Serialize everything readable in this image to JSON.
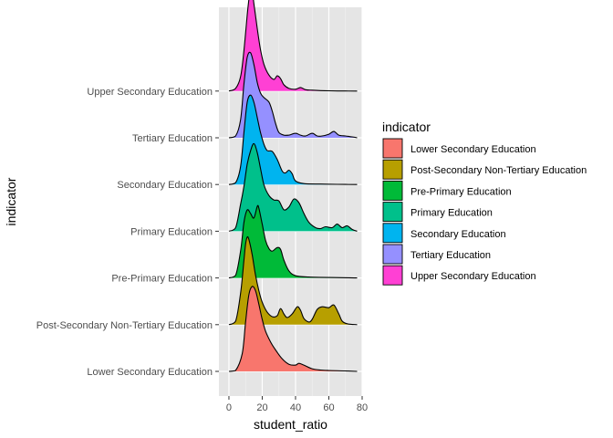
{
  "chart_data": {
    "type": "area",
    "subtype": "ridgeline-density",
    "xlabel": "student_ratio",
    "ylabel": "indicator",
    "xlim": [
      -6,
      80
    ],
    "xticks": [
      0,
      20,
      40,
      60,
      80
    ],
    "grid": true,
    "background": "#E5E5E5",
    "legend": {
      "title": "indicator",
      "position": "right",
      "entries": [
        "Lower Secondary Education",
        "Post-Secondary Non-Tertiary Education",
        "Pre-Primary Education",
        "Primary Education",
        "Secondary Education",
        "Tertiary Education",
        "Upper Secondary Education"
      ]
    },
    "categories": [
      "Lower Secondary Education",
      "Post-Secondary Non-Tertiary Education",
      "Pre-Primary Education",
      "Primary Education",
      "Secondary Education",
      "Tertiary Education",
      "Upper Secondary Education"
    ],
    "series": [
      {
        "name": "Lower Secondary Education",
        "color": "#F8766D",
        "x": [
          0,
          4,
          8,
          10,
          12,
          14,
          16,
          18,
          20,
          22,
          25,
          28,
          32,
          36,
          40,
          42,
          45,
          50,
          55,
          60,
          70,
          77
        ],
        "density": [
          0.0,
          0.01,
          0.2,
          0.55,
          0.86,
          0.95,
          0.9,
          0.75,
          0.58,
          0.45,
          0.33,
          0.24,
          0.14,
          0.08,
          0.07,
          0.09,
          0.07,
          0.03,
          0.015,
          0.01,
          0.005,
          0.0
        ]
      },
      {
        "name": "Post-Secondary Non-Tertiary Education",
        "color": "#B79F00",
        "x": [
          0,
          4,
          7,
          9,
          10,
          11,
          12,
          14,
          16,
          18,
          20,
          23,
          26,
          29,
          31,
          33,
          35,
          38,
          41,
          43,
          45,
          48,
          50,
          53,
          56,
          60,
          63,
          66,
          68,
          71,
          77
        ],
        "density": [
          0.0,
          0.04,
          0.35,
          0.72,
          0.9,
          0.98,
          0.95,
          0.78,
          0.55,
          0.38,
          0.25,
          0.14,
          0.09,
          0.1,
          0.18,
          0.12,
          0.08,
          0.12,
          0.2,
          0.16,
          0.07,
          0.03,
          0.06,
          0.17,
          0.2,
          0.19,
          0.22,
          0.12,
          0.04,
          0.01,
          0.0
        ]
      },
      {
        "name": "Pre-Primary Education",
        "color": "#00BA38",
        "x": [
          0,
          4,
          7,
          9,
          11,
          13,
          15,
          17,
          18,
          20,
          22,
          24,
          26,
          29,
          31,
          33,
          36,
          40,
          48,
          60,
          72,
          77
        ],
        "density": [
          0.0,
          0.03,
          0.3,
          0.62,
          0.76,
          0.72,
          0.67,
          0.8,
          0.78,
          0.6,
          0.42,
          0.33,
          0.3,
          0.34,
          0.32,
          0.2,
          0.08,
          0.025,
          0.01,
          0.005,
          0.002,
          0.0
        ]
      },
      {
        "name": "Primary Education",
        "color": "#00C08B",
        "x": [
          0,
          4,
          7,
          9,
          11,
          13,
          15,
          17,
          19,
          21,
          24,
          27,
          30,
          33,
          36,
          39,
          42,
          45,
          48,
          52,
          55,
          58,
          62,
          65,
          68,
          71,
          74,
          77
        ],
        "density": [
          0.0,
          0.04,
          0.3,
          0.5,
          0.75,
          0.9,
          0.98,
          0.88,
          0.7,
          0.52,
          0.4,
          0.35,
          0.34,
          0.24,
          0.27,
          0.36,
          0.32,
          0.2,
          0.1,
          0.04,
          0.03,
          0.05,
          0.04,
          0.08,
          0.04,
          0.06,
          0.02,
          0.0
        ]
      },
      {
        "name": "Secondary Education",
        "color": "#00B4EF",
        "x": [
          0,
          4,
          7,
          9,
          11,
          13,
          15,
          17,
          19,
          21,
          23,
          26,
          29,
          32,
          34,
          36,
          38,
          40,
          45,
          55,
          65,
          77
        ],
        "density": [
          0.0,
          0.02,
          0.2,
          0.58,
          0.92,
          1.0,
          0.92,
          0.75,
          0.58,
          0.45,
          0.38,
          0.37,
          0.28,
          0.15,
          0.13,
          0.16,
          0.12,
          0.04,
          0.01,
          0.005,
          0.002,
          0.0
        ]
      },
      {
        "name": "Tertiary Education",
        "color": "#9590FF",
        "x": [
          0,
          4,
          7,
          9,
          11,
          13,
          15,
          17,
          19,
          21,
          24,
          26,
          28,
          30,
          33,
          36,
          40,
          43,
          46,
          50,
          53,
          56,
          60,
          63,
          66,
          70,
          74,
          77
        ],
        "density": [
          0.0,
          0.02,
          0.2,
          0.6,
          0.9,
          0.95,
          0.82,
          0.62,
          0.5,
          0.45,
          0.4,
          0.3,
          0.16,
          0.06,
          0.03,
          0.03,
          0.05,
          0.03,
          0.02,
          0.05,
          0.02,
          0.02,
          0.04,
          0.07,
          0.03,
          0.02,
          0.01,
          0.0
        ]
      },
      {
        "name": "Upper Secondary Education",
        "color": "#FF40D4",
        "x": [
          0,
          4,
          7,
          9,
          11,
          12,
          13,
          14,
          15,
          17,
          19,
          21,
          24,
          27,
          29,
          31,
          33,
          36,
          40,
          43,
          46,
          50,
          55,
          60,
          70,
          77
        ],
        "density": [
          0.0,
          0.03,
          0.16,
          0.45,
          0.85,
          1.03,
          1.15,
          1.12,
          0.98,
          0.7,
          0.46,
          0.3,
          0.18,
          0.13,
          0.17,
          0.14,
          0.07,
          0.03,
          0.02,
          0.04,
          0.015,
          0.01,
          0.005,
          0.003,
          0.001,
          0.0
        ]
      }
    ]
  }
}
